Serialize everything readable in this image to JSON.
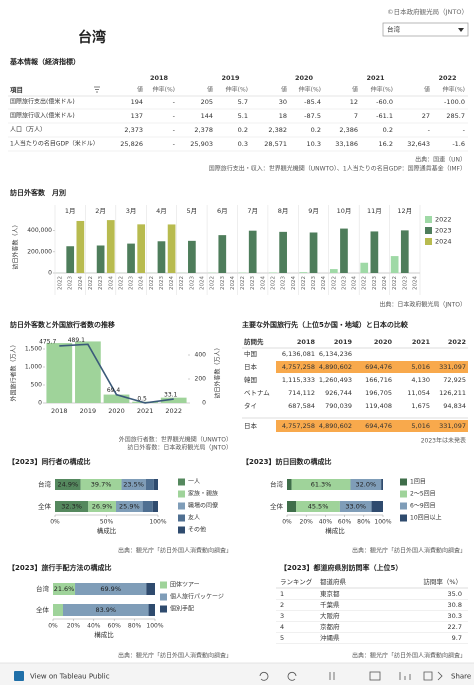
{
  "header": {
    "copyright": "©日本政府観光局（JNTO）",
    "dropdown": "台湾",
    "title": "台湾"
  },
  "table1": {
    "title": "基本情報（経済指標）",
    "item_header": "項目",
    "years": [
      "2018",
      "2019",
      "2020",
      "2021",
      "2022"
    ],
    "sub_headers": [
      "値",
      "伸率(%)"
    ],
    "rows": [
      {
        "label": "国際旅行支出(億米ドル)",
        "cells": [
          "194",
          "-",
          "205",
          "5.7",
          "30",
          "-85.4",
          "12",
          "-60.0",
          null,
          "-100.0"
        ]
      },
      {
        "label": "国際旅行収入(億米ドル)",
        "cells": [
          "137",
          "-",
          "144",
          "5.1",
          "18",
          "-87.5",
          "7",
          "-61.1",
          "27",
          "285.7"
        ]
      },
      {
        "label": "人口（万人）",
        "cells": [
          "2,373",
          "-",
          "2,378",
          "0.2",
          "2,382",
          "0.2",
          "2,386",
          "0.2",
          "-",
          "-"
        ]
      },
      {
        "label": "1人当たりの名目GDP（米ドル）",
        "cells": [
          "25,826",
          "-",
          "25,903",
          "0.3",
          "28,571",
          "10.3",
          "33,186",
          "16.2",
          "32,643",
          "-1.6"
        ]
      }
    ],
    "notes": [
      "出典：国連（UN）",
      "国際旅行支出・収入：世界観光機関（UNWTO）、1人当たりの名目GDP：国際通貨基金（IMF）"
    ]
  },
  "chart_data": [
    {
      "type": "grouped_bar",
      "title": "訪日外客数　月別",
      "y_label": "訪日外客数（人）",
      "categories": [
        "1月",
        "2月",
        "3月",
        "4月",
        "5月",
        "6月",
        "7月",
        "8月",
        "9月",
        "10月",
        "11月",
        "12月"
      ],
      "series": [
        {
          "name": "2022",
          "color": "#9fd9a6",
          "values": [
            1000,
            1000,
            1200,
            1500,
            2000,
            3000,
            4000,
            5000,
            8000,
            37000,
            97000,
            160000
          ]
        },
        {
          "name": "2023",
          "color": "#4e7d5b",
          "values": [
            253000,
            260000,
            278000,
            300000,
            304000,
            358000,
            400000,
            389000,
            383000,
            420000,
            393000,
            403000
          ]
        },
        {
          "name": "2024",
          "color": "#b8bb4f",
          "values": [
            492000,
            500000,
            460000,
            459000,
            null,
            null,
            null,
            null,
            null,
            null,
            null,
            null
          ]
        }
      ],
      "ylim": [
        0,
        520000
      ],
      "yticks": [
        0,
        {
          "value": 200000,
          "label": "200,000"
        },
        {
          "value": 400000,
          "label": "400,000"
        }
      ],
      "legend": "right",
      "note": "出典：日本政府観光局（JNTO）"
    },
    {
      "type": "bar_line",
      "title": "訪日外客数と外国旅行者数の推移",
      "y_label": "外国旅行者数（万人）",
      "y2_label": "訪日外客数（万人）",
      "categories": [
        "2018",
        "2019",
        "2020",
        "2021",
        "2022"
      ],
      "series": [
        {
          "name": "外国旅行者数（万人）",
          "type": "bar",
          "color": "#9fd39a",
          "values": [
            1664.5,
            1710.1,
            234.2,
            36.0,
            148.3
          ]
        },
        {
          "name": "訪日外客数（万人）",
          "type": "line",
          "axis": "y2",
          "color": "#3b5a7a",
          "values": [
            475.7,
            489.1,
            69.4,
            0.5,
            33.1
          ]
        }
      ],
      "ylim": [
        0,
        1750
      ],
      "yticks": [
        0,
        500,
        {
          "value": 1000,
          "label": "1,000"
        },
        {
          "value": 1500,
          "label": "1,500"
        }
      ],
      "y2lim": [
        0,
        525
      ],
      "y2ticks": [
        0,
        200,
        400
      ],
      "notes": [
        "外国旅行者数：世界観光機関（UNWTO）",
        "訪日外客数：日本政府観光局（JNTO）"
      ]
    },
    {
      "type": "stacked_bar_h",
      "title": "【2023】同行者の構成比",
      "x_label": "構成比",
      "categories": [
        "台湾",
        "全体"
      ],
      "series": [
        {
          "name": "一人",
          "color": "#55885e",
          "values": [
            24.9,
            32.3
          ],
          "value_labels": [
            "24.9%",
            "32.3%"
          ]
        },
        {
          "name": "家族・親族",
          "color": "#9fd39a",
          "values": [
            39.7,
            26.9
          ],
          "value_labels": [
            "39.7%",
            "26.9%"
          ]
        },
        {
          "name": "職場の同僚",
          "color": "#7f9db8",
          "values": [
            23.5,
            25.9
          ],
          "value_labels": [
            "23.5%",
            "25.9%"
          ]
        },
        {
          "name": "友人",
          "color": "#4f6f91",
          "values": [
            7.9,
            9.9
          ]
        },
        {
          "name": "その他",
          "color": "#2f4b6e",
          "values": [
            4.0,
            5.0
          ]
        }
      ],
      "xlim": [
        0,
        100
      ],
      "xticks": [
        {
          "value": 0,
          "label": "0%"
        },
        {
          "value": 50,
          "label": "50%"
        },
        {
          "value": 100,
          "label": "100%"
        }
      ],
      "note": "出典：観光庁「訪日外国人消費動向調査」"
    },
    {
      "type": "stacked_bar_h",
      "title": "【2023】訪日回数の構成比",
      "x_label": "構成比",
      "categories": [
        "台湾",
        "全体"
      ],
      "series": [
        {
          "name": "1回目",
          "color": "#3f6e4a",
          "values": [
            4.8,
            9.6
          ]
        },
        {
          "name": "2～5回目",
          "color": "#9fd39a",
          "values": [
            61.3,
            45.5
          ],
          "value_labels": [
            "61.3%",
            "45.5%"
          ]
        },
        {
          "name": "6～9回目",
          "color": "#7f9db8",
          "values": [
            32.0,
            33.0
          ],
          "value_labels": [
            "32.0%",
            "33.0%"
          ]
        },
        {
          "name": "10回目以上",
          "color": "#2f4b6e",
          "values": [
            1.9,
            11.9
          ]
        }
      ],
      "xlim": [
        0,
        100
      ],
      "xticks": [
        {
          "value": 0,
          "label": "0%"
        },
        {
          "value": 20,
          "label": "20%"
        },
        {
          "value": 40,
          "label": "40%"
        },
        {
          "value": 60,
          "label": "60%"
        },
        {
          "value": 80,
          "label": "80%"
        },
        {
          "value": 100,
          "label": "100%"
        }
      ],
      "note": "出典：観光庁「訪日外国人消費動向調査」"
    },
    {
      "type": "stacked_bar_h",
      "title": "【2023】旅行手配方法の構成比",
      "x_label": "構成比",
      "categories": [
        "台湾",
        "全体"
      ],
      "series": [
        {
          "name": "団体ツアー",
          "color": "#9fd39a",
          "values": [
            21.6,
            9.8
          ],
          "value_labels": [
            "21.6%",
            null
          ]
        },
        {
          "name": "個人旅行パッケージ",
          "color": "#7f9db8",
          "values": [
            69.9,
            83.9
          ],
          "value_labels": [
            "69.9%",
            "83.9%"
          ]
        },
        {
          "name": "個別手配",
          "color": "#2f4b6e",
          "values": [
            8.5,
            6.3
          ]
        }
      ],
      "xlim": [
        0,
        100
      ],
      "xticks": [
        {
          "value": 0,
          "label": "0%"
        },
        {
          "value": 20,
          "label": "20%"
        },
        {
          "value": 40,
          "label": "40%"
        },
        {
          "value": 60,
          "label": "60%"
        },
        {
          "value": 80,
          "label": "80%"
        },
        {
          "value": 100,
          "label": "100%"
        }
      ],
      "note": "出典：観光庁「訪日外国人消費動向調査」"
    }
  ],
  "table2": {
    "title": "主要な外国旅行先（上位5か国・地域）と日本の比較",
    "headers": [
      "訪問先",
      "2018",
      "2019",
      "2020",
      "2021",
      "2022"
    ],
    "rows": [
      [
        "中国",
        "6,136,081",
        "6,134,236",
        null,
        null,
        null
      ],
      [
        "日本",
        "4,757,258",
        "4,890,602",
        "694,476",
        "5,016",
        "331,097"
      ],
      [
        "韓国",
        "1,115,333",
        "1,260,493",
        "166,716",
        "4,130",
        "72,925"
      ],
      [
        "ベトナム",
        "714,112",
        "926,744",
        "196,705",
        "11,054",
        "126,211"
      ],
      [
        "タイ",
        "687,584",
        "790,039",
        "119,408",
        "1,675",
        "94,834"
      ]
    ],
    "own_row": [
      "日本",
      "4,757,258",
      "4,890,602",
      "694,476",
      "5,016",
      "331,097"
    ],
    "highlight_color": "#f8a94c",
    "note": "2023年は未発表"
  },
  "table3": {
    "title": "【2023】都道府県別訪問率（上位5）",
    "headers": [
      "ランキング",
      "都道府県",
      "訪問率（%）"
    ],
    "rows": [
      [
        "1",
        "東京都",
        "35.0"
      ],
      [
        "2",
        "千葉県",
        "30.8"
      ],
      [
        "3",
        "大阪府",
        "30.3"
      ],
      [
        "4",
        "京都府",
        "22.7"
      ],
      [
        "5",
        "沖縄県",
        "9.7"
      ]
    ],
    "note": "出典：観光庁「訪日外国人消費動向調査」"
  },
  "footer": {
    "link": "View on Tableau Public",
    "share": "Share"
  }
}
